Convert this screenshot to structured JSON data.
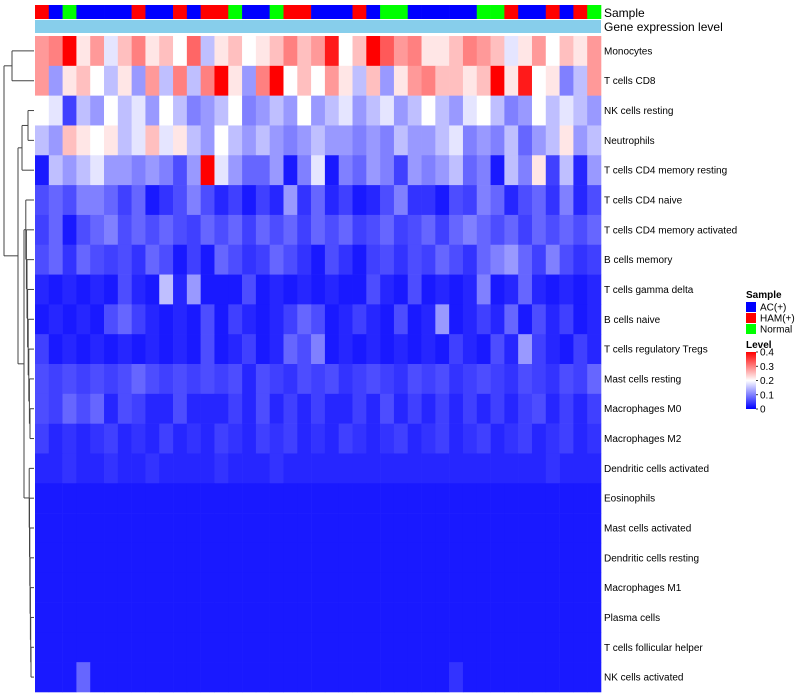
{
  "chart_data": {
    "type": "heatmap",
    "annotation_labels": {
      "sample": "Sample",
      "gene_expression": "Gene expression level"
    },
    "rows": [
      "Monocytes",
      "T cells CD8",
      "NK cells resting",
      "Neutrophils",
      "T cells CD4 memory resting",
      "T cells CD4 naive",
      "T cells CD4 memory activated",
      "B cells memory",
      "T cells gamma delta",
      "B cells naive",
      "T cells regulatory  Tregs",
      "Mast cells resting",
      "Macrophages M0",
      "Macrophages M2",
      "Dendritic cells activated",
      "Eosinophils",
      "Mast cells activated",
      "Dendritic cells resting",
      "Macrophages M1",
      "Plasma cells",
      "T cells follicular helper",
      "NK cells activated"
    ],
    "sample_groups": [
      "HAM(+)",
      "AC(+)",
      "Normal",
      "AC(+)",
      "AC(+)",
      "AC(+)",
      "AC(+)",
      "HAM(+)",
      "AC(+)",
      "AC(+)",
      "HAM(+)",
      "AC(+)",
      "HAM(+)",
      "HAM(+)",
      "Normal",
      "AC(+)",
      "AC(+)",
      "Normal",
      "HAM(+)",
      "HAM(+)",
      "AC(+)",
      "AC(+)",
      "AC(+)",
      "HAM(+)",
      "AC(+)",
      "Normal",
      "Normal",
      "AC(+)",
      "AC(+)",
      "AC(+)",
      "AC(+)",
      "AC(+)",
      "Normal",
      "Normal",
      "HAM(+)",
      "AC(+)",
      "AC(+)",
      "HAM(+)",
      "AC(+)",
      "HAM(+)",
      "Normal"
    ],
    "values": [
      [
        0.28,
        0.3,
        0.4,
        0.22,
        0.28,
        0.18,
        0.25,
        0.3,
        0.22,
        0.25,
        0.2,
        0.32,
        0.15,
        0.22,
        0.25,
        0.2,
        0.22,
        0.25,
        0.3,
        0.25,
        0.28,
        0.38,
        0.2,
        0.25,
        0.4,
        0.33,
        0.28,
        0.3,
        0.22,
        0.22,
        0.25,
        0.3,
        0.28,
        0.25,
        0.18,
        0.22,
        0.28,
        0.2,
        0.25,
        0.22,
        0.28
      ],
      [
        0.28,
        0.12,
        0.22,
        0.25,
        0.2,
        0.15,
        0.22,
        0.12,
        0.28,
        0.15,
        0.3,
        0.15,
        0.3,
        0.4,
        0.22,
        0.12,
        0.3,
        0.4,
        0.2,
        0.25,
        0.2,
        0.28,
        0.22,
        0.15,
        0.25,
        0.12,
        0.22,
        0.28,
        0.3,
        0.25,
        0.25,
        0.22,
        0.25,
        0.4,
        0.22,
        0.38,
        0.2,
        0.22,
        0.1,
        0.15,
        0.28
      ],
      [
        0.2,
        0.18,
        0.05,
        0.15,
        0.12,
        0.2,
        0.15,
        0.18,
        0.12,
        0.2,
        0.15,
        0.1,
        0.12,
        0.15,
        0.2,
        0.1,
        0.12,
        0.15,
        0.12,
        0.2,
        0.12,
        0.15,
        0.18,
        0.12,
        0.15,
        0.18,
        0.12,
        0.15,
        0.2,
        0.15,
        0.12,
        0.18,
        0.2,
        0.15,
        0.1,
        0.12,
        0.2,
        0.15,
        0.18,
        0.15,
        0.12
      ],
      [
        0.15,
        0.12,
        0.25,
        0.22,
        0.2,
        0.22,
        0.15,
        0.18,
        0.25,
        0.18,
        0.22,
        0.15,
        0.12,
        0.2,
        0.15,
        0.12,
        0.15,
        0.12,
        0.1,
        0.12,
        0.15,
        0.12,
        0.12,
        0.1,
        0.12,
        0.1,
        0.15,
        0.12,
        0.12,
        0.15,
        0.18,
        0.1,
        0.12,
        0.1,
        0.15,
        0.08,
        0.12,
        0.15,
        0.22,
        0.12,
        0.15
      ],
      [
        0.02,
        0.15,
        0.12,
        0.15,
        0.18,
        0.12,
        0.12,
        0.1,
        0.12,
        0.1,
        0.06,
        0.12,
        0.4,
        0.18,
        0.12,
        0.08,
        0.08,
        0.12,
        0.02,
        0.1,
        0.18,
        0.02,
        0.1,
        0.08,
        0.12,
        0.1,
        0.05,
        0.12,
        0.1,
        0.12,
        0.15,
        0.08,
        0.1,
        0.02,
        0.15,
        0.1,
        0.22,
        0.05,
        0.15,
        0.03,
        0.12
      ],
      [
        0.06,
        0.08,
        0.06,
        0.1,
        0.1,
        0.08,
        0.05,
        0.08,
        0.02,
        0.04,
        0.06,
        0.1,
        0.06,
        0.03,
        0.05,
        0.02,
        0.05,
        0.03,
        0.12,
        0.04,
        0.08,
        0.03,
        0.05,
        0.02,
        0.03,
        0.06,
        0.1,
        0.04,
        0.04,
        0.02,
        0.06,
        0.05,
        0.1,
        0.08,
        0.03,
        0.06,
        0.08,
        0.04,
        0.1,
        0.03,
        0.06
      ],
      [
        0.05,
        0.08,
        0.02,
        0.06,
        0.08,
        0.1,
        0.06,
        0.08,
        0.06,
        0.08,
        0.06,
        0.05,
        0.08,
        0.06,
        0.08,
        0.05,
        0.08,
        0.06,
        0.08,
        0.05,
        0.08,
        0.06,
        0.08,
        0.05,
        0.06,
        0.08,
        0.05,
        0.06,
        0.08,
        0.05,
        0.08,
        0.1,
        0.08,
        0.06,
        0.08,
        0.05,
        0.08,
        0.06,
        0.08,
        0.06,
        0.08
      ],
      [
        0.06,
        0.08,
        0.04,
        0.08,
        0.06,
        0.05,
        0.06,
        0.04,
        0.08,
        0.06,
        0.02,
        0.05,
        0.02,
        0.08,
        0.06,
        0.04,
        0.05,
        0.08,
        0.06,
        0.04,
        0.02,
        0.06,
        0.04,
        0.02,
        0.05,
        0.06,
        0.04,
        0.06,
        0.05,
        0.08,
        0.06,
        0.04,
        0.08,
        0.1,
        0.12,
        0.08,
        0.05,
        0.1,
        0.06,
        0.04,
        0.05
      ],
      [
        0.03,
        0.02,
        0.03,
        0.02,
        0.03,
        0.02,
        0.06,
        0.03,
        0.02,
        0.15,
        0.03,
        0.12,
        0.02,
        0.02,
        0.02,
        0.06,
        0.02,
        0.03,
        0.02,
        0.03,
        0.02,
        0.03,
        0.02,
        0.02,
        0.06,
        0.03,
        0.02,
        0.06,
        0.02,
        0.03,
        0.02,
        0.03,
        0.1,
        0.02,
        0.03,
        0.08,
        0.03,
        0.02,
        0.03,
        0.02,
        0.03
      ],
      [
        0.02,
        0.03,
        0.02,
        0.03,
        0.02,
        0.06,
        0.08,
        0.05,
        0.03,
        0.02,
        0.03,
        0.02,
        0.06,
        0.02,
        0.05,
        0.03,
        0.02,
        0.03,
        0.05,
        0.08,
        0.06,
        0.02,
        0.03,
        0.05,
        0.03,
        0.02,
        0.06,
        0.02,
        0.03,
        0.12,
        0.02,
        0.03,
        0.05,
        0.03,
        0.08,
        0.02,
        0.06,
        0.03,
        0.05,
        0.02,
        0.03
      ],
      [
        0.05,
        0.02,
        0.03,
        0.02,
        0.03,
        0.02,
        0.03,
        0.02,
        0.03,
        0.02,
        0.03,
        0.02,
        0.06,
        0.02,
        0.03,
        0.05,
        0.02,
        0.03,
        0.08,
        0.06,
        0.1,
        0.02,
        0.03,
        0.02,
        0.03,
        0.02,
        0.03,
        0.02,
        0.03,
        0.02,
        0.05,
        0.03,
        0.02,
        0.06,
        0.03,
        0.12,
        0.05,
        0.03,
        0.02,
        0.05,
        0.03
      ],
      [
        0.06,
        0.05,
        0.06,
        0.05,
        0.06,
        0.05,
        0.06,
        0.08,
        0.06,
        0.05,
        0.06,
        0.05,
        0.06,
        0.05,
        0.06,
        0.03,
        0.06,
        0.05,
        0.04,
        0.06,
        0.05,
        0.06,
        0.04,
        0.05,
        0.06,
        0.05,
        0.04,
        0.06,
        0.05,
        0.06,
        0.04,
        0.05,
        0.06,
        0.05,
        0.04,
        0.06,
        0.05,
        0.04,
        0.06,
        0.05,
        0.08
      ],
      [
        0.06,
        0.05,
        0.08,
        0.06,
        0.08,
        0.03,
        0.06,
        0.05,
        0.03,
        0.03,
        0.06,
        0.03,
        0.03,
        0.03,
        0.05,
        0.03,
        0.06,
        0.03,
        0.05,
        0.03,
        0.05,
        0.03,
        0.03,
        0.05,
        0.03,
        0.06,
        0.03,
        0.05,
        0.03,
        0.05,
        0.03,
        0.05,
        0.03,
        0.05,
        0.03,
        0.05,
        0.06,
        0.03,
        0.05,
        0.03,
        0.05
      ],
      [
        0.05,
        0.03,
        0.04,
        0.03,
        0.04,
        0.05,
        0.03,
        0.04,
        0.03,
        0.05,
        0.03,
        0.04,
        0.03,
        0.05,
        0.04,
        0.03,
        0.05,
        0.04,
        0.05,
        0.03,
        0.04,
        0.03,
        0.05,
        0.04,
        0.03,
        0.04,
        0.05,
        0.03,
        0.04,
        0.05,
        0.03,
        0.04,
        0.05,
        0.03,
        0.04,
        0.05,
        0.03,
        0.04,
        0.05,
        0.03,
        0.04
      ],
      [
        0.03,
        0.03,
        0.04,
        0.03,
        0.03,
        0.04,
        0.03,
        0.03,
        0.04,
        0.03,
        0.03,
        0.03,
        0.03,
        0.04,
        0.03,
        0.03,
        0.03,
        0.04,
        0.03,
        0.03,
        0.03,
        0.03,
        0.03,
        0.03,
        0.03,
        0.03,
        0.03,
        0.03,
        0.03,
        0.03,
        0.03,
        0.03,
        0.03,
        0.03,
        0.03,
        0.03,
        0.03,
        0.04,
        0.03,
        0.03,
        0.03
      ],
      [
        0.02,
        0.02,
        0.02,
        0.02,
        0.02,
        0.02,
        0.02,
        0.02,
        0.02,
        0.02,
        0.02,
        0.02,
        0.02,
        0.02,
        0.02,
        0.02,
        0.02,
        0.02,
        0.02,
        0.02,
        0.02,
        0.02,
        0.02,
        0.02,
        0.02,
        0.02,
        0.02,
        0.02,
        0.02,
        0.02,
        0.02,
        0.02,
        0.02,
        0.02,
        0.02,
        0.02,
        0.02,
        0.02,
        0.02,
        0.02,
        0.02
      ],
      [
        0.02,
        0.02,
        0.02,
        0.02,
        0.02,
        0.02,
        0.02,
        0.02,
        0.02,
        0.02,
        0.02,
        0.02,
        0.02,
        0.02,
        0.02,
        0.02,
        0.02,
        0.02,
        0.02,
        0.02,
        0.02,
        0.02,
        0.02,
        0.02,
        0.02,
        0.02,
        0.02,
        0.02,
        0.02,
        0.02,
        0.02,
        0.02,
        0.02,
        0.02,
        0.02,
        0.02,
        0.02,
        0.02,
        0.02,
        0.02,
        0.02
      ],
      [
        0.02,
        0.02,
        0.02,
        0.02,
        0.02,
        0.02,
        0.02,
        0.02,
        0.02,
        0.02,
        0.02,
        0.02,
        0.02,
        0.02,
        0.02,
        0.02,
        0.02,
        0.02,
        0.02,
        0.02,
        0.02,
        0.02,
        0.02,
        0.02,
        0.02,
        0.02,
        0.02,
        0.02,
        0.02,
        0.02,
        0.02,
        0.02,
        0.02,
        0.02,
        0.02,
        0.02,
        0.02,
        0.02,
        0.02,
        0.02,
        0.02
      ],
      [
        0.02,
        0.02,
        0.02,
        0.02,
        0.02,
        0.02,
        0.02,
        0.02,
        0.02,
        0.02,
        0.02,
        0.02,
        0.02,
        0.02,
        0.02,
        0.02,
        0.02,
        0.02,
        0.02,
        0.02,
        0.02,
        0.02,
        0.02,
        0.02,
        0.02,
        0.02,
        0.02,
        0.02,
        0.02,
        0.02,
        0.02,
        0.02,
        0.02,
        0.02,
        0.02,
        0.02,
        0.02,
        0.02,
        0.02,
        0.02,
        0.02
      ],
      [
        0.02,
        0.02,
        0.02,
        0.02,
        0.02,
        0.02,
        0.02,
        0.02,
        0.02,
        0.02,
        0.02,
        0.02,
        0.02,
        0.02,
        0.02,
        0.02,
        0.02,
        0.02,
        0.02,
        0.02,
        0.02,
        0.02,
        0.02,
        0.02,
        0.02,
        0.02,
        0.02,
        0.02,
        0.02,
        0.02,
        0.02,
        0.02,
        0.02,
        0.02,
        0.02,
        0.02,
        0.02,
        0.02,
        0.02,
        0.02,
        0.02
      ],
      [
        0.02,
        0.02,
        0.02,
        0.02,
        0.02,
        0.02,
        0.02,
        0.02,
        0.02,
        0.02,
        0.02,
        0.02,
        0.02,
        0.02,
        0.02,
        0.02,
        0.02,
        0.02,
        0.02,
        0.02,
        0.02,
        0.02,
        0.02,
        0.02,
        0.02,
        0.02,
        0.02,
        0.02,
        0.02,
        0.02,
        0.02,
        0.02,
        0.02,
        0.02,
        0.02,
        0.02,
        0.02,
        0.02,
        0.02,
        0.02,
        0.02
      ],
      [
        0.02,
        0.02,
        0.02,
        0.08,
        0.02,
        0.02,
        0.02,
        0.02,
        0.02,
        0.02,
        0.02,
        0.02,
        0.02,
        0.02,
        0.02,
        0.02,
        0.02,
        0.02,
        0.02,
        0.02,
        0.02,
        0.02,
        0.02,
        0.02,
        0.02,
        0.02,
        0.02,
        0.02,
        0.02,
        0.02,
        0.04,
        0.02,
        0.02,
        0.02,
        0.02,
        0.02,
        0.02,
        0.02,
        0.02,
        0.02,
        0.02
      ]
    ],
    "color_scale": {
      "min": 0,
      "mid": 0.2,
      "max": 0.4,
      "low": "#0000ff",
      "midcolor": "#ffffff",
      "high": "#ff0000"
    },
    "legend": {
      "sample_title": "Sample",
      "groups": [
        {
          "label": "AC(+)",
          "color": "#0000ff"
        },
        {
          "label": "HAM(+)",
          "color": "#ff0000"
        },
        {
          "label": "Normal",
          "color": "#00ff00"
        }
      ],
      "level_title": "Level",
      "level_ticks": [
        "0.4",
        "0.3",
        "0.2",
        "0.1",
        "0"
      ],
      "level_tick_values": [
        0.4,
        0.3,
        0.2,
        0.1,
        0
      ]
    },
    "gene_expression_color": "#87ceeb"
  }
}
